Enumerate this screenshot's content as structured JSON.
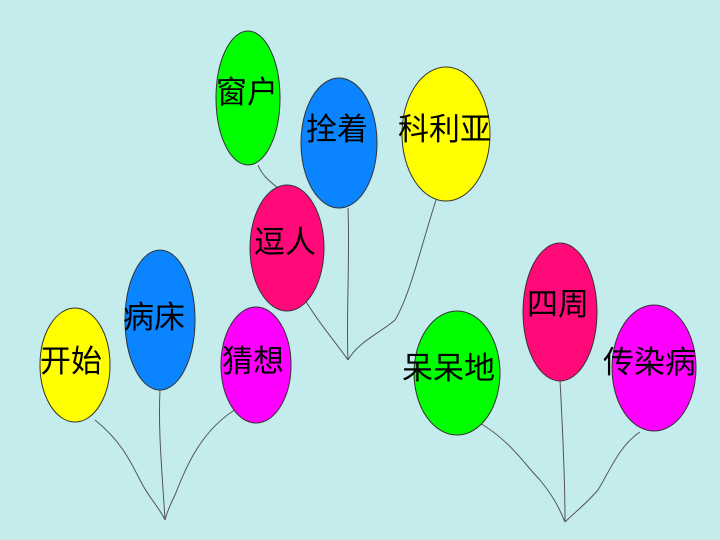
{
  "colors": {
    "background": "#c4ecec",
    "string": "#555555",
    "green": "#00ff00",
    "blue": "#0a84ff",
    "yellow": "#ffff00",
    "pink": "#ff0a78",
    "magenta": "#ff00ff"
  },
  "balloons": [
    {
      "word": "开始",
      "color": "yellow"
    },
    {
      "word": "病床",
      "color": "blue"
    },
    {
      "word": "猜想",
      "color": "magenta"
    },
    {
      "word": "逗人",
      "color": "pink"
    },
    {
      "word": "窗户",
      "color": "green"
    },
    {
      "word": "拴着",
      "color": "blue"
    },
    {
      "word": "科利亚",
      "color": "yellow"
    },
    {
      "word": "呆呆地",
      "color": "green"
    },
    {
      "word": "四周",
      "color": "pink"
    },
    {
      "word": "传染病",
      "color": "magenta"
    }
  ]
}
